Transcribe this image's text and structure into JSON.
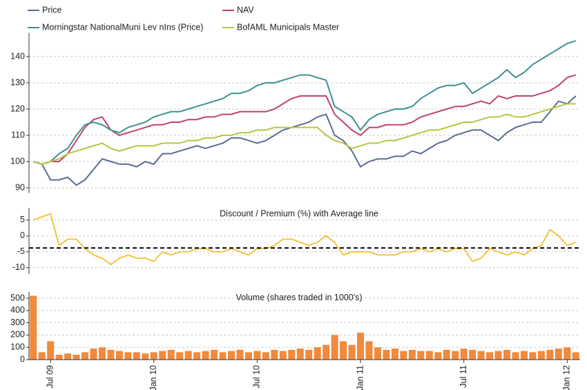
{
  "chart_data": [
    {
      "type": "line",
      "legend": "top-left",
      "grid": true,
      "ylim": [
        88,
        148
      ],
      "yticks": [
        90,
        100,
        110,
        120,
        130,
        140
      ],
      "series": [
        {
          "name": "Price",
          "color": "#5b6b94",
          "values": [
            100,
            99,
            93,
            93,
            94,
            91,
            93,
            97,
            101,
            100,
            99,
            99,
            98,
            100,
            99,
            103,
            103,
            104,
            105,
            106,
            105,
            106,
            107,
            109,
            109,
            108,
            107,
            108,
            110,
            112,
            113,
            114,
            115,
            117,
            118,
            110,
            108,
            104,
            98,
            100,
            101,
            101,
            102,
            102,
            104,
            103,
            105,
            107,
            108,
            110,
            111,
            112,
            112,
            110,
            108,
            111,
            113,
            114,
            115,
            115,
            119,
            123,
            122,
            125
          ]
        },
        {
          "name": "NAV",
          "color": "#c0426c",
          "values": [
            100,
            99,
            100,
            100,
            103,
            108,
            113,
            116,
            117,
            112,
            110,
            111,
            112,
            113,
            114,
            114,
            115,
            115,
            116,
            116,
            117,
            117,
            118,
            118,
            119,
            119,
            119,
            119,
            120,
            122,
            124,
            125,
            125,
            125,
            125,
            118,
            115,
            112,
            110,
            113,
            113,
            114,
            114,
            114,
            115,
            117,
            118,
            119,
            120,
            121,
            121,
            122,
            123,
            122,
            125,
            124,
            125,
            125,
            125,
            126,
            127,
            129,
            132,
            133
          ]
        },
        {
          "name": "Morningstar NationalMuni Lev nIns (Price)",
          "color": "#3f9090",
          "values": [
            100,
            99,
            100,
            103,
            105,
            110,
            114,
            115,
            114,
            112,
            111,
            113,
            114,
            115,
            117,
            118,
            119,
            119,
            120,
            121,
            122,
            123,
            124,
            126,
            126,
            127,
            129,
            130,
            130,
            131,
            132,
            133,
            133,
            132,
            131,
            121,
            119,
            117,
            112,
            116,
            118,
            119,
            120,
            120,
            121,
            124,
            126,
            128,
            129,
            129,
            130,
            126,
            128,
            130,
            132,
            135,
            132,
            134,
            137,
            139,
            141,
            143,
            145,
            146
          ]
        },
        {
          "name": "BofAML Municipals Master",
          "color": "#b9c440",
          "values": [
            100,
            99,
            100,
            101,
            103,
            104,
            105,
            106,
            107,
            105,
            104,
            105,
            106,
            106,
            106,
            107,
            107,
            107,
            108,
            108,
            109,
            109,
            110,
            110,
            111,
            111,
            112,
            112,
            113,
            113,
            113,
            113,
            113,
            113,
            110,
            108,
            107,
            105,
            106,
            107,
            107,
            108,
            108,
            109,
            110,
            111,
            112,
            112,
            113,
            114,
            115,
            115,
            116,
            117,
            117,
            118,
            117,
            117,
            118,
            119,
            120,
            121,
            122,
            122
          ]
        }
      ]
    },
    {
      "type": "line",
      "title": "Discount / Premium (%) with Average line",
      "grid": true,
      "ylim": [
        -12,
        8
      ],
      "yticks": [
        5,
        0,
        -5,
        -10
      ],
      "color": "#f0c030",
      "average": -3.8,
      "values": [
        5,
        6,
        7,
        -3,
        -1,
        -1,
        -4,
        -6,
        -7,
        -9,
        -7,
        -6,
        -7,
        -7,
        -8,
        -5,
        -6,
        -5,
        -5,
        -4,
        -4,
        -5,
        -5,
        -4,
        -5,
        -6,
        -4,
        -4,
        -3,
        -1,
        -1,
        -2,
        -3,
        -2,
        0,
        -2,
        -6,
        -5,
        -5,
        -5,
        -6,
        -6,
        -6,
        -5,
        -5,
        -4,
        -5,
        -4,
        -5,
        -4,
        -4,
        -8,
        -7,
        -4,
        -5,
        -6,
        -5,
        -6,
        -4,
        -3,
        2,
        0,
        -3,
        -2
      ]
    },
    {
      "type": "bar",
      "title": "Volume  (shares traded in 1000's)",
      "grid": true,
      "ylim": [
        0,
        530
      ],
      "yticks": [
        0,
        100,
        200,
        300,
        400,
        500
      ],
      "color": "#f08a3c",
      "categories": [
        null,
        null,
        "Jul 09",
        null,
        null,
        null,
        null,
        null,
        null,
        null,
        null,
        null,
        null,
        null,
        "Jan 10",
        null,
        null,
        null,
        null,
        null,
        null,
        null,
        null,
        null,
        null,
        null,
        "Jul 10",
        null,
        null,
        null,
        null,
        null,
        null,
        null,
        null,
        null,
        null,
        null,
        "Jan 11",
        null,
        null,
        null,
        null,
        null,
        null,
        null,
        null,
        null,
        null,
        null,
        "Jul 11",
        null,
        null,
        null,
        null,
        null,
        null,
        null,
        null,
        null,
        null,
        null,
        "Jan 12",
        null
      ],
      "values": [
        520,
        60,
        150,
        40,
        50,
        40,
        60,
        90,
        100,
        80,
        70,
        60,
        60,
        50,
        60,
        70,
        80,
        60,
        70,
        60,
        70,
        80,
        60,
        70,
        80,
        60,
        70,
        60,
        80,
        70,
        80,
        90,
        80,
        100,
        120,
        200,
        150,
        120,
        220,
        150,
        100,
        80,
        90,
        70,
        80,
        70,
        70,
        60,
        80,
        70,
        90,
        80,
        70,
        60,
        70,
        80,
        60,
        70,
        60,
        70,
        80,
        90,
        100,
        60
      ]
    }
  ]
}
